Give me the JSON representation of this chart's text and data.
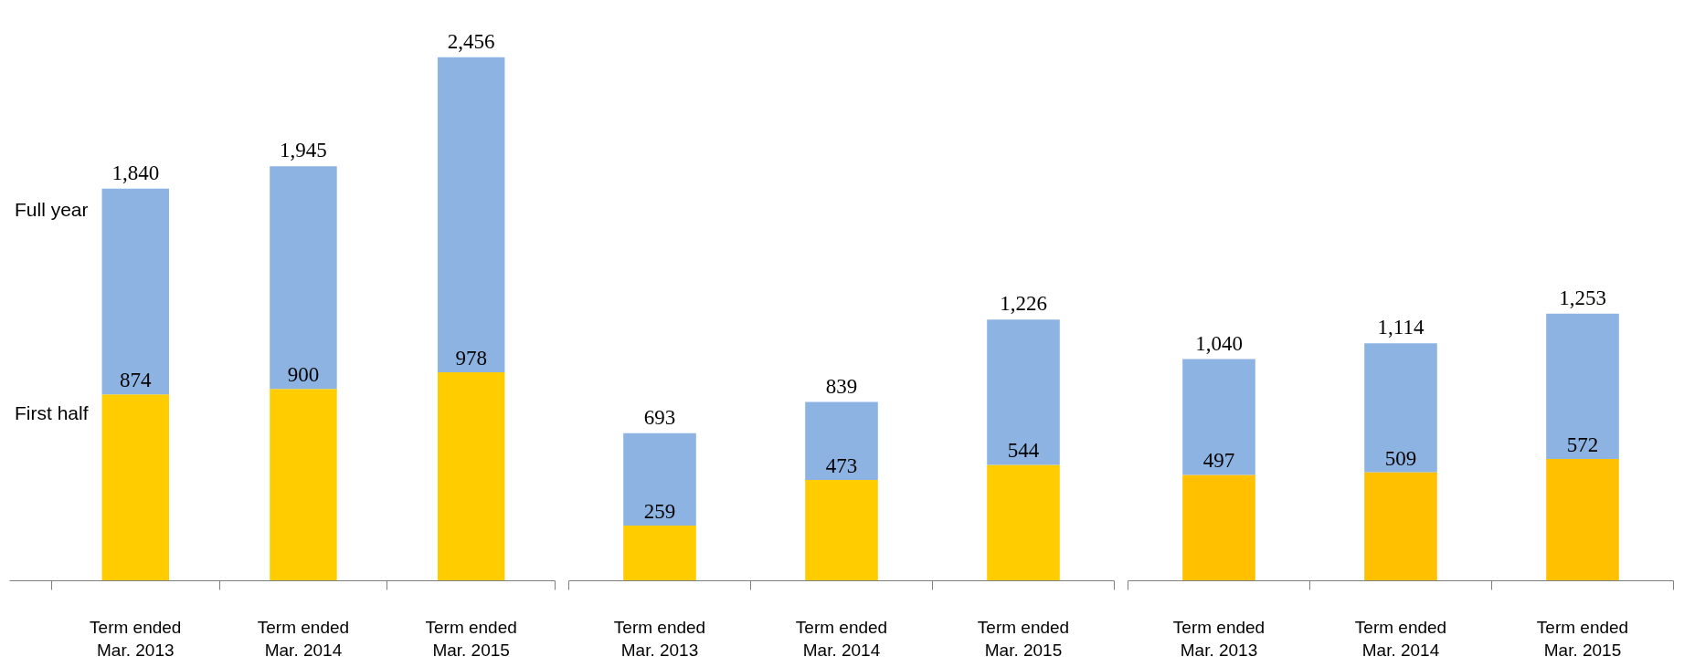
{
  "chart_data": [
    {
      "type": "bar",
      "stacked": true,
      "categories": [
        "Term ended\nMar. 2013",
        "Term ended\nMar. 2014",
        "Term ended\nMar. 2015"
      ],
      "series": [
        {
          "name": "First half",
          "color": "#ffcc00",
          "values": [
            874,
            900,
            978
          ],
          "value_labels": [
            "874",
            "900",
            "978"
          ]
        },
        {
          "name": "Full year",
          "color": "#8db3e2",
          "values": [
            966,
            1045,
            1478
          ]
        }
      ],
      "totals": [
        "1,840",
        "1,945",
        "2,456"
      ]
    },
    {
      "type": "bar",
      "stacked": true,
      "categories": [
        "Term ended\nMar. 2013",
        "Term ended\nMar. 2014",
        "Term ended\nMar. 2015"
      ],
      "series": [
        {
          "color": "#ffcc00",
          "values": [
            259,
            473,
            544
          ],
          "value_labels": [
            "259",
            "473",
            "544"
          ]
        },
        {
          "color": "#8db3e2",
          "values": [
            434,
            366,
            682
          ]
        }
      ],
      "totals": [
        "693",
        "839",
        "1,226"
      ]
    },
    {
      "type": "bar",
      "stacked": true,
      "categories": [
        "Term ended\nMar. 2013",
        "Term ended\nMar. 2014",
        "Term ended\nMar. 2015"
      ],
      "series": [
        {
          "color": "#ffc000",
          "values": [
            497,
            509,
            572
          ],
          "value_labels": [
            "497",
            "509",
            "572"
          ]
        },
        {
          "color": "#8db3e2",
          "values": [
            543,
            605,
            681
          ]
        }
      ],
      "totals": [
        "1,040",
        "1,114",
        "1,253"
      ]
    }
  ]
}
